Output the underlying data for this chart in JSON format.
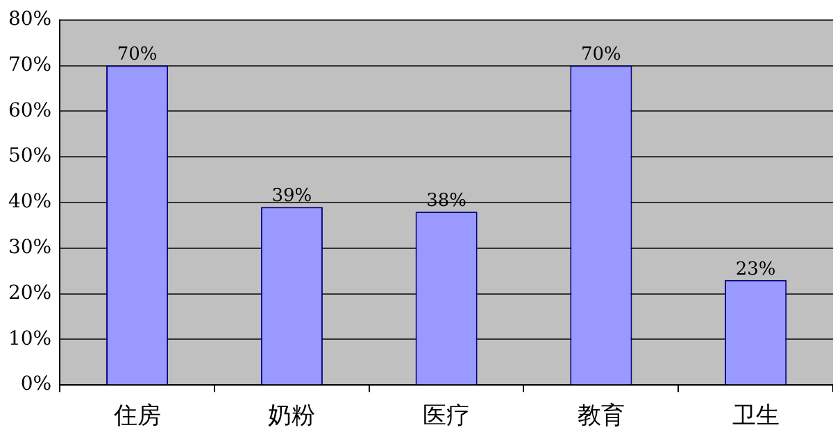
{
  "chart_data": {
    "type": "bar",
    "categories": [
      "住房",
      "奶粉",
      "医疗",
      "教育",
      "卫生"
    ],
    "values": [
      70,
      39,
      38,
      70,
      23
    ],
    "value_labels": [
      "70%",
      "39%",
      "38%",
      "70%",
      "23%"
    ],
    "color": "#9999ff",
    "ylim": [
      0,
      80
    ],
    "yticks": [
      {
        "value": 0,
        "label": "0%"
      },
      {
        "value": 10,
        "label": "10%"
      },
      {
        "value": 20,
        "label": "20%"
      },
      {
        "value": 30,
        "label": "30%"
      },
      {
        "value": 40,
        "label": "40%"
      },
      {
        "value": 50,
        "label": "50%"
      },
      {
        "value": 60,
        "label": "60%"
      },
      {
        "value": 70,
        "label": "70%"
      },
      {
        "value": 80,
        "label": "80%"
      }
    ],
    "grid": "y",
    "legend": false
  }
}
